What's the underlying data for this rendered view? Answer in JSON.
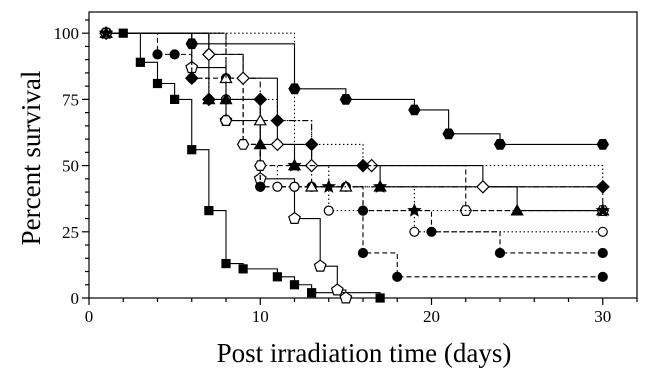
{
  "chart_data": {
    "type": "line",
    "subtype": "kaplan-meier step curves",
    "title": "",
    "xlabel": "Post irradiation time (days)",
    "ylabel": "Percent survival",
    "xlim": [
      0,
      32
    ],
    "ylim": [
      0,
      108
    ],
    "xticks": [
      0,
      10,
      20,
      30
    ],
    "yticks": [
      0,
      25,
      50,
      75,
      100
    ],
    "x_minor_step": 2,
    "y_minor_step": 5,
    "grid": false,
    "legend": "none",
    "series": [
      {
        "marker": "filled-square",
        "line": "solid",
        "color": "#000000",
        "x": [
          1,
          2,
          3,
          4,
          5,
          6,
          7,
          8,
          9,
          11,
          12,
          13,
          17
        ],
        "y": [
          100,
          100,
          89,
          81,
          75,
          56,
          33,
          13,
          11,
          8,
          5,
          2,
          0
        ]
      },
      {
        "marker": "open-pentagon",
        "line": "solid",
        "color": "#000000",
        "x": [
          1,
          6,
          8,
          10,
          12,
          13.5,
          14.5,
          15
        ],
        "y": [
          100,
          87,
          67,
          45,
          30,
          12,
          3,
          0
        ]
      },
      {
        "marker": "filled-hexagon",
        "line": "solid",
        "color": "#000000",
        "x": [
          1,
          6,
          12,
          15,
          19,
          21,
          24,
          30
        ],
        "y": [
          100,
          96,
          79,
          75,
          71,
          62,
          58,
          58
        ]
      },
      {
        "marker": "filled-circle",
        "line": "dashed",
        "color": "#000000",
        "x": [
          1,
          4,
          5,
          6,
          8,
          9,
          10,
          13,
          16,
          18,
          30
        ],
        "y": [
          100,
          92,
          92,
          83,
          83,
          58,
          42,
          42,
          17,
          8,
          8
        ]
      },
      {
        "marker": "filled-circle",
        "line": "dashed",
        "color": "#000000",
        "x": [
          1,
          7,
          9,
          10,
          12,
          15,
          16,
          20,
          24,
          30
        ],
        "y": [
          100,
          92,
          58,
          42,
          42,
          42,
          33,
          25,
          17,
          17
        ]
      },
      {
        "marker": "open-circle",
        "line": "dotted",
        "color": "#000000",
        "x": [
          1,
          8,
          10,
          11,
          12,
          14,
          19,
          30
        ],
        "y": [
          100,
          75,
          50,
          42,
          42,
          33,
          25,
          25
        ]
      },
      {
        "marker": "filled-triangle",
        "line": "solid",
        "color": "#000000",
        "x": [
          1,
          7,
          8,
          10,
          12,
          17,
          25,
          30
        ],
        "y": [
          100,
          75,
          75,
          58,
          50,
          42,
          33,
          33
        ]
      },
      {
        "marker": "open-triangle",
        "line": "dash-dot",
        "color": "#000000",
        "x": [
          1,
          8,
          10,
          13,
          15,
          30
        ],
        "y": [
          100,
          83,
          67,
          42,
          42,
          33
        ]
      },
      {
        "marker": "open-diamond",
        "line": "solid",
        "color": "#000000",
        "x": [
          1,
          7,
          9,
          11,
          13,
          16.5,
          23,
          30
        ],
        "y": [
          100,
          92,
          83,
          58,
          50,
          50,
          42,
          42
        ]
      },
      {
        "marker": "filled-diamond",
        "line": "dotted",
        "color": "#000000",
        "x": [
          1,
          6,
          7,
          10,
          11,
          13,
          16,
          30
        ],
        "y": [
          100,
          83,
          75,
          75,
          67,
          58,
          50,
          42
        ]
      },
      {
        "marker": "open-hexagon",
        "line": "dashed",
        "color": "#000000",
        "x": [
          1,
          8,
          9,
          10,
          22,
          30
        ],
        "y": [
          100,
          67,
          58,
          50,
          33,
          33
        ]
      },
      {
        "marker": "star",
        "line": "dotted",
        "color": "#000000",
        "x": [
          1,
          12,
          14,
          17,
          19,
          30
        ],
        "y": [
          100,
          50,
          42,
          42,
          33,
          33
        ]
      }
    ]
  }
}
